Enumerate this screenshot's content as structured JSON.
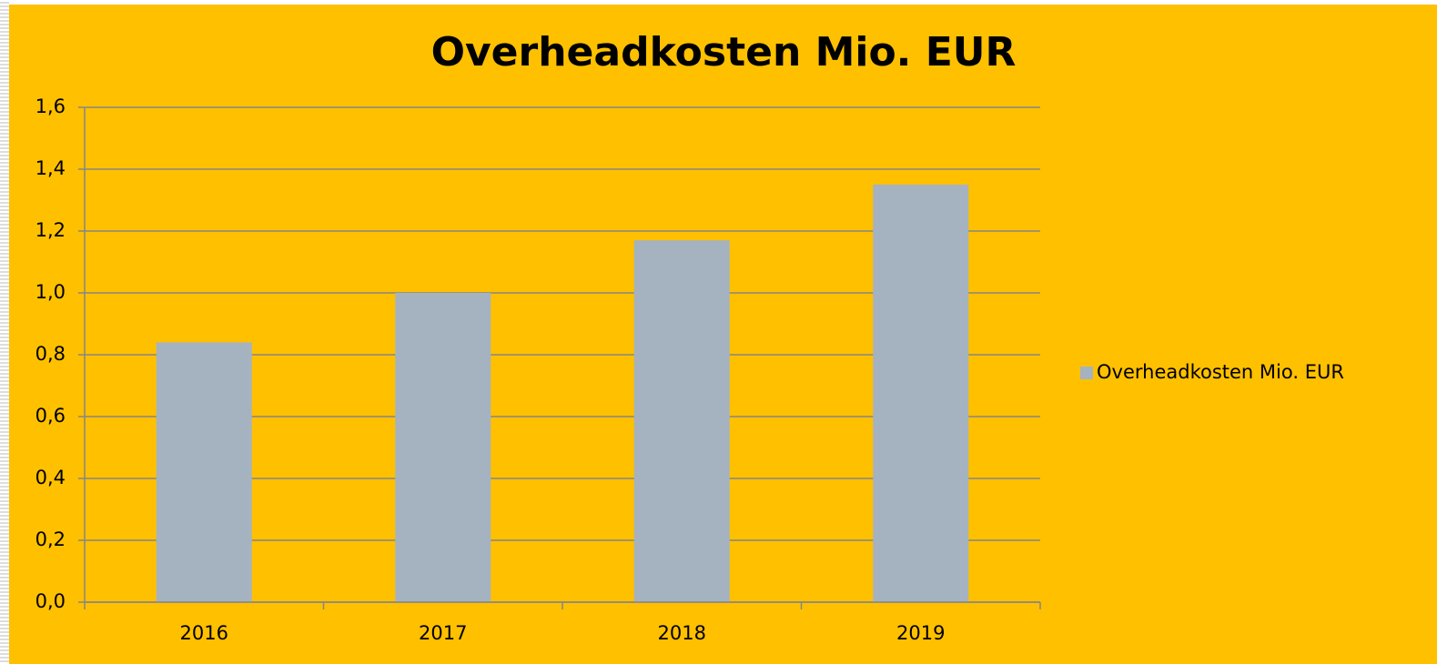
{
  "chart_data": {
    "type": "bar",
    "title": "Overheadkosten Mio. EUR",
    "categories": [
      "2016",
      "2017",
      "2018",
      "2019"
    ],
    "series": [
      {
        "name": "Overheadkosten Mio. EUR",
        "color": "#a5b2c0",
        "values": [
          0.84,
          1.0,
          1.17,
          1.35
        ]
      }
    ],
    "ylim": [
      0,
      1.6
    ],
    "yticks": [
      {
        "value": 0,
        "label": "0,0"
      },
      {
        "value": 0.2,
        "label": "0,2"
      },
      {
        "value": 0.4,
        "label": "0,4"
      },
      {
        "value": 0.6,
        "label": "0,6"
      },
      {
        "value": 0.8,
        "label": "0,8"
      },
      {
        "value": 1.0,
        "label": "1,0"
      },
      {
        "value": 1.2,
        "label": "1,2"
      },
      {
        "value": 1.4,
        "label": "1,4"
      },
      {
        "value": 1.6,
        "label": "1,6"
      }
    ],
    "grid": true,
    "legend": "right",
    "background": "#ffc000"
  }
}
